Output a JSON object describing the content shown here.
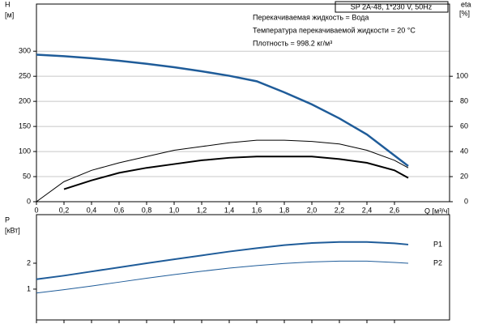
{
  "chart_data": [
    {
      "type": "line",
      "title": "SP 2A-48, 1*230 V, 50Hz",
      "annotations": [
        "Перекачиваемая жидкость = Вода",
        "Температура перекачиваемой жидкости = 20 °C",
        "Плотность = 998.2 кг/м³"
      ],
      "ylabel": "H",
      "yunit": "[м]",
      "y2label": "eta",
      "y2unit": "[%]",
      "xlabel": "Q [м³/ч]",
      "x": [
        0,
        0.2,
        0.4,
        0.6,
        0.8,
        1.0,
        1.2,
        1.4,
        1.6,
        1.8,
        2.0,
        2.2,
        2.4,
        2.6,
        2.7
      ],
      "xlim": [
        0,
        3.0
      ],
      "xticks": [
        0,
        {
          "value": 0.2,
          "label": "0,2"
        },
        {
          "value": 0.4,
          "label": "0,4"
        },
        {
          "value": 0.6,
          "label": "0,6"
        },
        {
          "value": 0.8,
          "label": "0,8"
        },
        {
          "value": 1.0,
          "label": "1,0"
        },
        {
          "value": 1.2,
          "label": "1,2"
        },
        {
          "value": 1.4,
          "label": "1,4"
        },
        {
          "value": 1.6,
          "label": "1,6"
        },
        {
          "value": 1.8,
          "label": "1,8"
        },
        {
          "value": 2.0,
          "label": "2,0"
        },
        {
          "value": 2.2,
          "label": "2,2"
        },
        {
          "value": 2.4,
          "label": "2,4"
        },
        {
          "value": 2.6,
          "label": "2,6"
        }
      ],
      "ylim": [
        0,
        394
      ],
      "yticks": [
        0,
        50,
        100,
        150,
        200,
        250,
        300
      ],
      "y2lim": [
        0,
        157.6
      ],
      "y2ticks": [
        0,
        20,
        40,
        60,
        80,
        100
      ],
      "grid": true,
      "series": [
        {
          "color": "#1f5c99",
          "line_width": 2.5,
          "values": [
            293,
            290,
            286,
            281,
            275,
            268,
            260,
            251,
            240,
            218,
            194,
            166,
            134,
            92,
            71
          ]
        },
        {
          "color": "#000000",
          "line_width": 1,
          "axis": "y2",
          "values": [
            0,
            16,
            25,
            31,
            36,
            41,
            44,
            47,
            49,
            49,
            48,
            46,
            41,
            33,
            27
          ]
        },
        {
          "color": "#000000",
          "line_width": 2,
          "axis": "y2",
          "values": [
            null,
            10,
            17,
            23,
            27,
            30,
            33,
            35,
            36,
            36,
            36,
            34,
            31,
            25,
            19
          ]
        }
      ]
    },
    {
      "type": "line",
      "ylabel": "P",
      "yunit": "[кВт]",
      "x": [
        0,
        0.2,
        0.4,
        0.6,
        0.8,
        1.0,
        1.2,
        1.4,
        1.6,
        1.8,
        2.0,
        2.2,
        2.4,
        2.6,
        2.7
      ],
      "xlim": [
        0,
        3.0
      ],
      "ylim": [
        -0.19,
        3.875
      ],
      "yticks": [
        1,
        2
      ],
      "series": [
        {
          "name": "P1",
          "color": "#1f5c99",
          "line_width": 2,
          "values": [
            1.38,
            1.52,
            1.68,
            1.84,
            2.0,
            2.15,
            2.3,
            2.45,
            2.58,
            2.7,
            2.78,
            2.82,
            2.82,
            2.77,
            2.72
          ]
        },
        {
          "name": "P2",
          "color": "#1f5c99",
          "line_width": 1,
          "values": [
            0.85,
            0.98,
            1.12,
            1.27,
            1.42,
            1.56,
            1.69,
            1.81,
            1.91,
            1.99,
            2.05,
            2.08,
            2.08,
            2.03,
            2.0
          ]
        }
      ]
    }
  ]
}
